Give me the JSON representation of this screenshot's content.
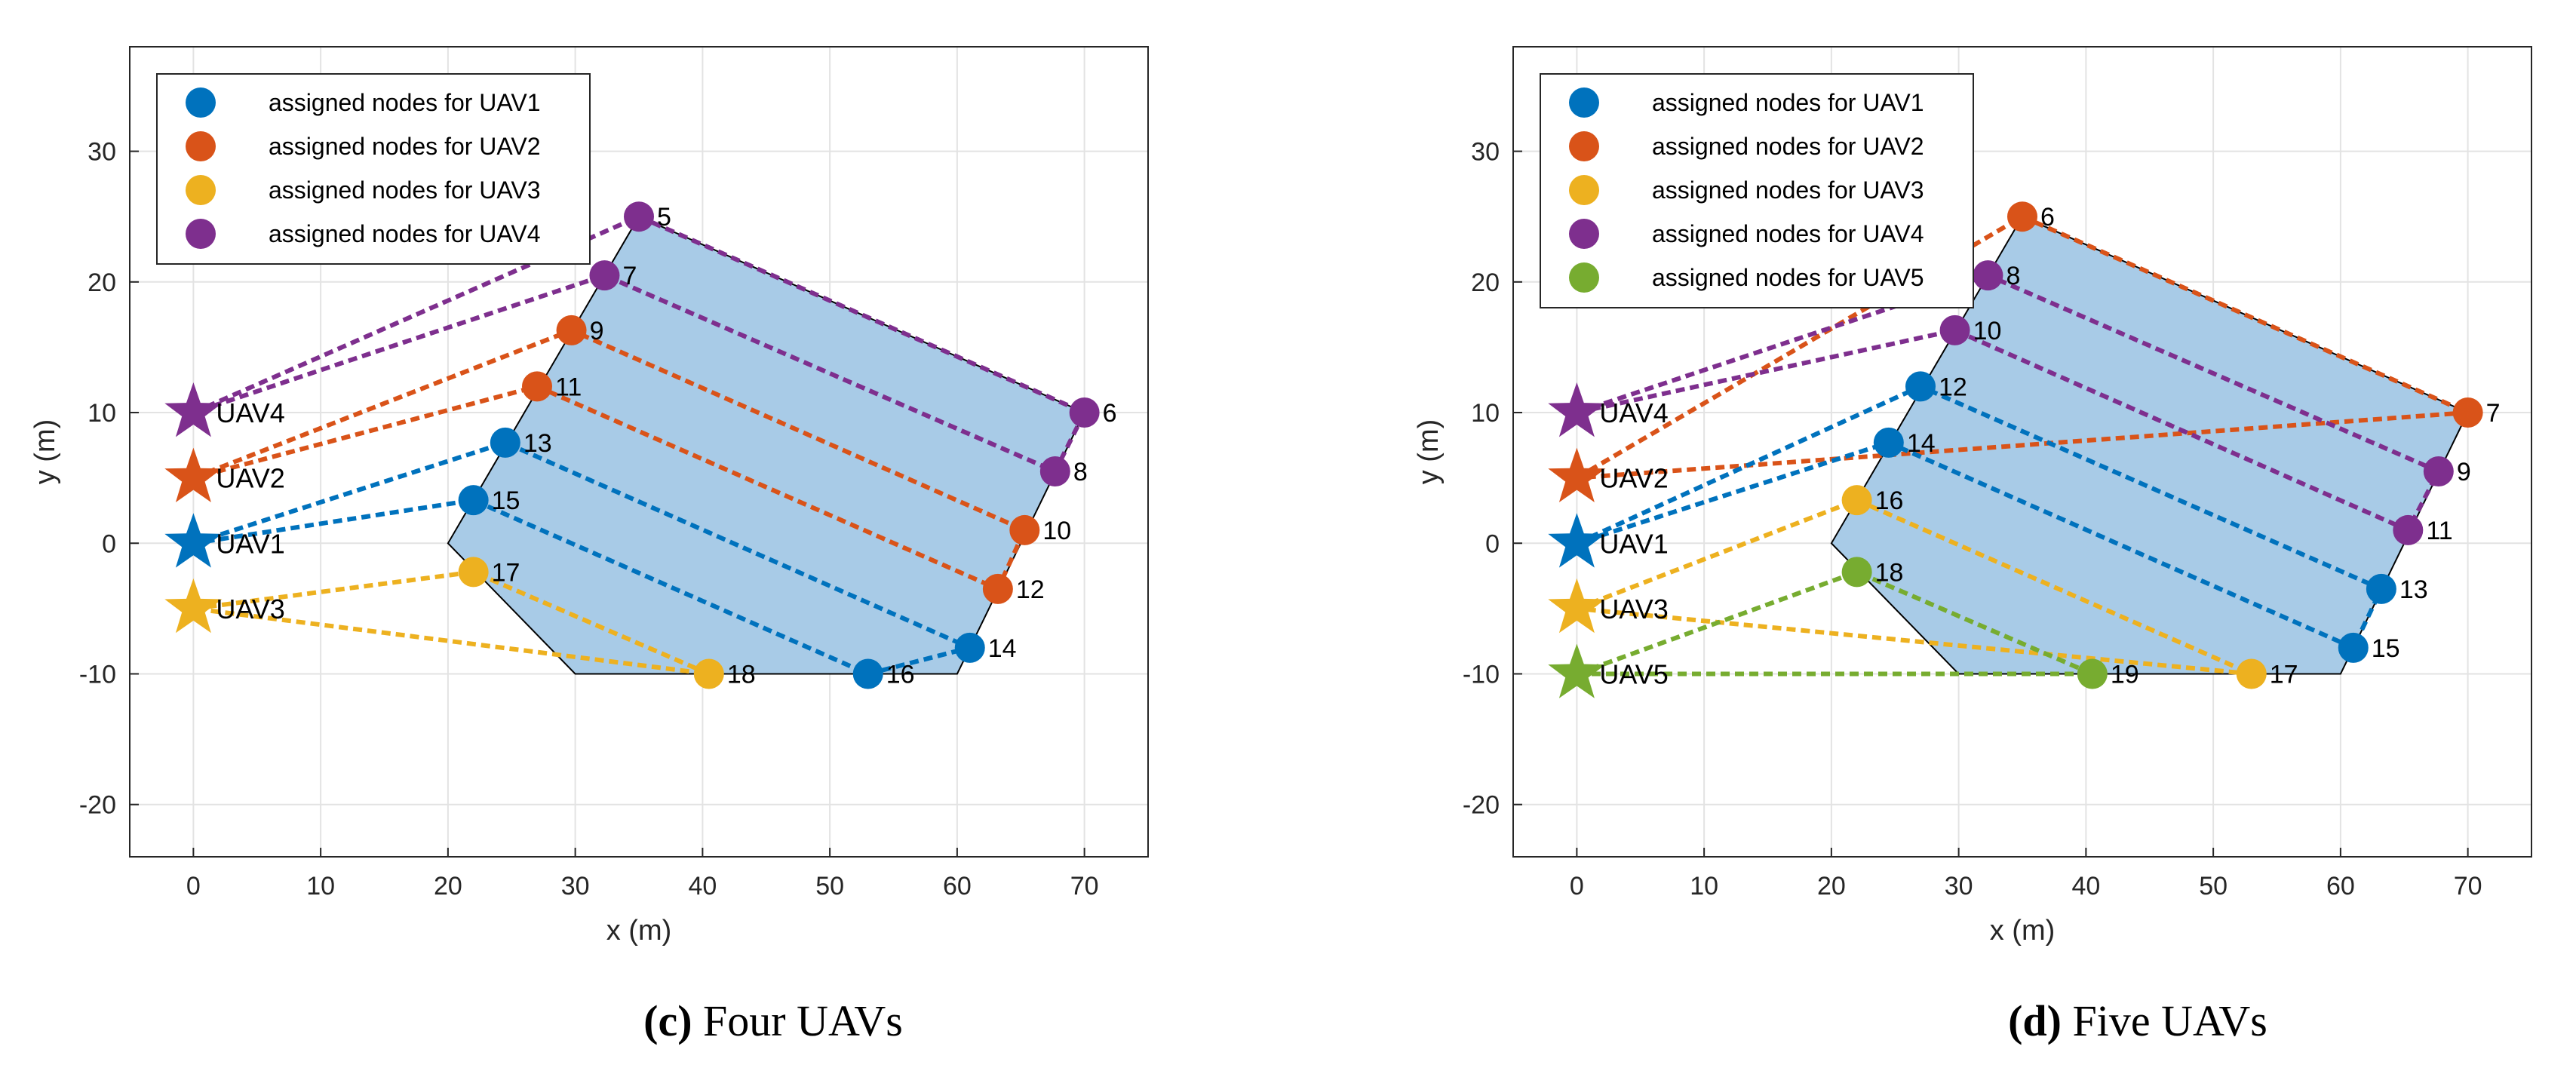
{
  "colors": {
    "UAV1": "#0072BD",
    "UAV2": "#D95319",
    "UAV3": "#EDB120",
    "UAV4": "#7E2F8E",
    "UAV5": "#77AC30",
    "region_fill": "#A8CBE7",
    "region_edge": "#000000",
    "grid": "#E3E3E3",
    "axis": "#262626"
  },
  "chart_data": [
    {
      "id": "c",
      "type": "scatter",
      "caption_letter": "(c)",
      "caption_text": " Four UAVs",
      "xlabel": "x (m)",
      "ylabel": "y (m)",
      "xlim": [
        -5,
        75
      ],
      "ylim": [
        -24,
        38
      ],
      "xticks": [
        0,
        10,
        20,
        30,
        40,
        50,
        60,
        70
      ],
      "yticks": [
        -20,
        -10,
        0,
        10,
        20,
        30
      ],
      "grid": true,
      "legend_position": "top-left",
      "legend": [
        "assigned nodes for UAV1",
        "assigned nodes for UAV2",
        "assigned nodes for UAV3",
        "assigned nodes for UAV4"
      ],
      "region": [
        [
          35,
          25
        ],
        [
          70,
          10
        ],
        [
          60,
          -10
        ],
        [
          30,
          -10
        ],
        [
          20,
          0
        ],
        [
          35,
          25
        ]
      ],
      "uavs": [
        {
          "name": "UAV1",
          "x": 0,
          "y": 0
        },
        {
          "name": "UAV2",
          "x": 0,
          "y": 5
        },
        {
          "name": "UAV3",
          "x": 0,
          "y": -5
        },
        {
          "name": "UAV4",
          "x": 0,
          "y": 10
        }
      ],
      "nodes": [
        {
          "id": "5",
          "x": 35,
          "y": 25,
          "uav": "UAV4"
        },
        {
          "id": "6",
          "x": 70,
          "y": 10,
          "uav": "UAV4"
        },
        {
          "id": "7",
          "x": 32.3,
          "y": 20.5,
          "uav": "UAV4"
        },
        {
          "id": "8",
          "x": 67.7,
          "y": 5.5,
          "uav": "UAV4"
        },
        {
          "id": "9",
          "x": 29.7,
          "y": 16.3,
          "uav": "UAV2"
        },
        {
          "id": "10",
          "x": 65.3,
          "y": 1,
          "uav": "UAV2"
        },
        {
          "id": "11",
          "x": 27,
          "y": 12,
          "uav": "UAV2"
        },
        {
          "id": "12",
          "x": 63.2,
          "y": -3.5,
          "uav": "UAV2"
        },
        {
          "id": "13",
          "x": 24.5,
          "y": 7.7,
          "uav": "UAV1"
        },
        {
          "id": "14",
          "x": 61,
          "y": -8,
          "uav": "UAV1"
        },
        {
          "id": "15",
          "x": 22,
          "y": 3.3,
          "uav": "UAV1"
        },
        {
          "id": "16",
          "x": 53,
          "y": -10,
          "uav": "UAV1"
        },
        {
          "id": "17",
          "x": 22,
          "y": -2.2,
          "uav": "UAV3"
        },
        {
          "id": "18",
          "x": 40.5,
          "y": -10,
          "uav": "UAV3"
        }
      ],
      "routes": [
        {
          "uav": "UAV4",
          "path": [
            "UAV4",
            "5",
            "6",
            "8",
            "7",
            "UAV4"
          ]
        },
        {
          "uav": "UAV2",
          "path": [
            "UAV2",
            "9",
            "10",
            "12",
            "11",
            "UAV2"
          ]
        },
        {
          "uav": "UAV1",
          "path": [
            "UAV1",
            "13",
            "14",
            "16",
            "15",
            "UAV1"
          ]
        },
        {
          "uav": "UAV3",
          "path": [
            "UAV3",
            "17",
            "18",
            "UAV3"
          ]
        }
      ]
    },
    {
      "id": "d",
      "type": "scatter",
      "caption_letter": "(d)",
      "caption_text": " Five UAVs",
      "xlabel": "x (m)",
      "ylabel": "y (m)",
      "xlim": [
        -5,
        75
      ],
      "ylim": [
        -24,
        38
      ],
      "xticks": [
        0,
        10,
        20,
        30,
        40,
        50,
        60,
        70
      ],
      "yticks": [
        -20,
        -10,
        0,
        10,
        20,
        30
      ],
      "grid": true,
      "legend_position": "top-left",
      "legend": [
        "assigned nodes for UAV1",
        "assigned nodes for UAV2",
        "assigned nodes for UAV3",
        "assigned nodes for UAV4",
        "assigned nodes for UAV5"
      ],
      "region": [
        [
          35,
          25
        ],
        [
          70,
          10
        ],
        [
          60,
          -10
        ],
        [
          30,
          -10
        ],
        [
          20,
          0
        ],
        [
          35,
          25
        ]
      ],
      "uavs": [
        {
          "name": "UAV1",
          "x": 0,
          "y": 0
        },
        {
          "name": "UAV2",
          "x": 0,
          "y": 5
        },
        {
          "name": "UAV3",
          "x": 0,
          "y": -5
        },
        {
          "name": "UAV4",
          "x": 0,
          "y": 10
        },
        {
          "name": "UAV5",
          "x": 0,
          "y": -10
        }
      ],
      "nodes": [
        {
          "id": "6",
          "x": 35,
          "y": 25,
          "uav": "UAV2"
        },
        {
          "id": "7",
          "x": 70,
          "y": 10,
          "uav": "UAV2"
        },
        {
          "id": "8",
          "x": 32.3,
          "y": 20.5,
          "uav": "UAV4"
        },
        {
          "id": "9",
          "x": 67.7,
          "y": 5.5,
          "uav": "UAV4"
        },
        {
          "id": "10",
          "x": 29.7,
          "y": 16.3,
          "uav": "UAV4"
        },
        {
          "id": "11",
          "x": 65.3,
          "y": 1,
          "uav": "UAV4"
        },
        {
          "id": "12",
          "x": 27,
          "y": 12,
          "uav": "UAV1"
        },
        {
          "id": "13",
          "x": 63.2,
          "y": -3.5,
          "uav": "UAV1"
        },
        {
          "id": "14",
          "x": 24.5,
          "y": 7.7,
          "uav": "UAV1"
        },
        {
          "id": "15",
          "x": 61,
          "y": -8,
          "uav": "UAV1"
        },
        {
          "id": "16",
          "x": 22,
          "y": 3.3,
          "uav": "UAV3"
        },
        {
          "id": "17",
          "x": 53,
          "y": -10,
          "uav": "UAV3"
        },
        {
          "id": "18",
          "x": 22,
          "y": -2.2,
          "uav": "UAV5"
        },
        {
          "id": "19",
          "x": 40.5,
          "y": -10,
          "uav": "UAV5"
        }
      ],
      "routes": [
        {
          "uav": "UAV2",
          "path": [
            "UAV2",
            "6",
            "7",
            "UAV2"
          ]
        },
        {
          "uav": "UAV4",
          "path": [
            "UAV4",
            "8",
            "9",
            "11",
            "10",
            "UAV4"
          ]
        },
        {
          "uav": "UAV1",
          "path": [
            "UAV1",
            "12",
            "13",
            "15",
            "14",
            "UAV1"
          ]
        },
        {
          "uav": "UAV3",
          "path": [
            "UAV3",
            "16",
            "17",
            "UAV3"
          ]
        },
        {
          "uav": "UAV5",
          "path": [
            "UAV5",
            "18",
            "19",
            "UAV5"
          ]
        }
      ]
    }
  ]
}
